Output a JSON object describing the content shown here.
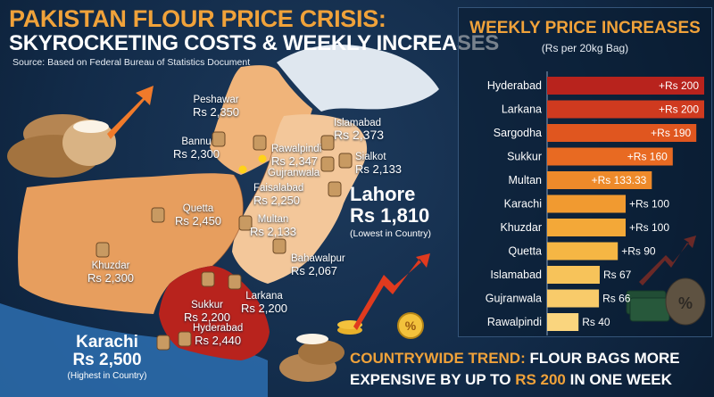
{
  "header": {
    "title_line1": "PAKISTAN FLOUR PRICE CRISIS:",
    "title_line2": "SKYROCKETING COSTS & WEEKLY INCREASES",
    "source": "Source: Based on Federal Bureau of Statistics Document"
  },
  "map": {
    "cities": [
      {
        "name": "Peshawar",
        "price": "Rs 2,350"
      },
      {
        "name": "Bannu",
        "price": "Rs 2,300"
      },
      {
        "name": "Rawalpindi",
        "price": "Rs 2,347"
      },
      {
        "name": "Islamabad",
        "price": "Rs 2,373"
      },
      {
        "name": "Gujranwala",
        "price": ""
      },
      {
        "name": "Sialkot",
        "price": "Rs 2,133"
      },
      {
        "name": "Faisalabad",
        "price": "Rs 2,250"
      },
      {
        "name": "Quetta",
        "price": "Rs 2,450"
      },
      {
        "name": "Multan",
        "price": "Rs 2,133"
      },
      {
        "name": "Bahawalpur",
        "price": "Rs 2,067"
      },
      {
        "name": "Khuzdar",
        "price": "Rs 2,300"
      },
      {
        "name": "Larkana",
        "price": "Rs 2,200"
      },
      {
        "name": "Sukkur",
        "price": "Rs 2,200"
      },
      {
        "name": "Hyderabad",
        "price": "Rs 2,440"
      }
    ],
    "lahore": {
      "name": "Lahore",
      "price": "Rs 1,810",
      "note": "(Lowest in Country)"
    },
    "karachi": {
      "name": "Karachi",
      "price": "Rs 2,500",
      "note": "(Highest in Country)"
    },
    "colors": {
      "punjab": "#f3c79a",
      "kp": "#f0b47a",
      "balochistan": "#e79e5e",
      "sindh": "#b8231d",
      "north": "#dfe7ef",
      "sea": "#2d6fb0"
    }
  },
  "panel": {
    "title": "WEEKLY PRICE INCREASES",
    "subtitle": "(Rs per 20kg Bag)"
  },
  "chart_data": {
    "type": "bar",
    "orientation": "horizontal",
    "title": "WEEKLY PRICE INCREASES",
    "subtitle": "(Rs per 20kg Bag)",
    "categories": [
      "Hyderabad",
      "Larkana",
      "Sargodha",
      "Sukkur",
      "Multan",
      "Karachi",
      "Khuzdar",
      "Quetta",
      "Islamabad",
      "Gujranwala",
      "Rawalpindi"
    ],
    "values": [
      200,
      200,
      190,
      160,
      133.33,
      100,
      100,
      90,
      67,
      66,
      40
    ],
    "labels": [
      "+Rs 200",
      "+Rs 200",
      "+Rs 190",
      "+Rs 160",
      "+Rs 133.33",
      "+Rs 100",
      "+Rs 100",
      "+Rs 90",
      "Rs 67",
      "Rs 66",
      "Rs 40"
    ],
    "colors": [
      "#b8231d",
      "#cf3a1f",
      "#e0561f",
      "#e86a22",
      "#ee8a2a",
      "#f19a30",
      "#f3a838",
      "#f5b644",
      "#f7c35a",
      "#f8cb6a",
      "#fad57e"
    ],
    "xlim": [
      0,
      200
    ]
  },
  "banner": {
    "line1_accent": "COUNTRYWIDE TREND:",
    "line1_rest": " FLOUR BAGS MORE",
    "line2_pre": "EXPENSIVE BY UP TO ",
    "line2_accent": "RS 200",
    "line2_post": " IN ONE WEEK"
  }
}
